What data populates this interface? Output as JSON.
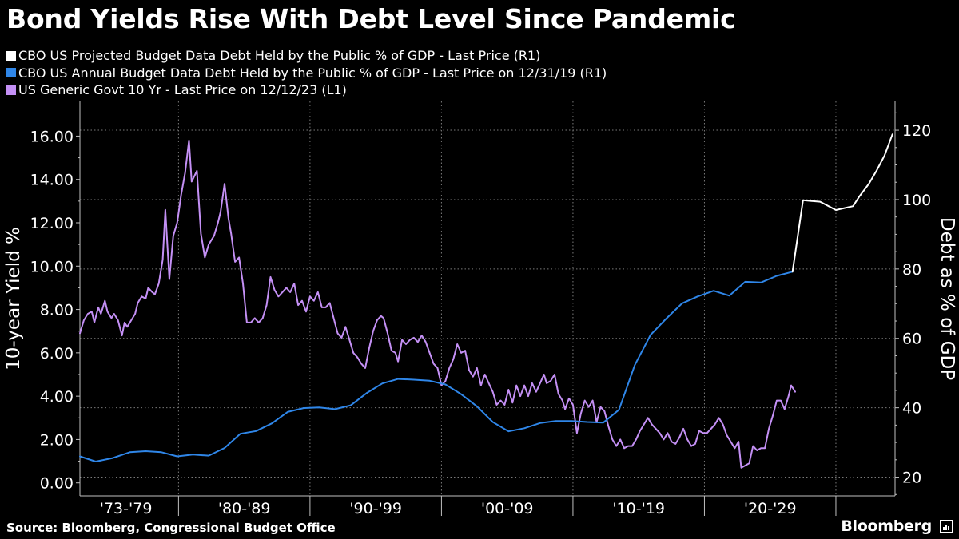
{
  "title": "Bond Yields Rise With Debt Level Since Pandemic",
  "legend": [
    {
      "label": "CBO US Projected Budget Data Debt Held by the Public % of GDP - Last Price (R1)",
      "color": "#ffffff"
    },
    {
      "label": "CBO US Annual Budget Data Debt Held by the Public % of GDP - Last Price on 12/31/19 (R1)",
      "color": "#2f86e8"
    },
    {
      "label": "US Generic Govt 10 Yr - Last Price on 12/12/23 (L1)",
      "color": "#c490f5"
    }
  ],
  "source": "Source: Bloomberg, Congressional Budget Office",
  "brand": "Bloomberg",
  "chart_data": {
    "type": "line",
    "x_range": [
      1972,
      2034
    ],
    "x_ticks": [
      1979.5,
      1989.5,
      1999.5,
      2009.5,
      2019.5,
      2029.5
    ],
    "x_tick_labels": [
      "'73-'79",
      "'80-'89",
      "'90-'99",
      "'00-'09",
      "'10-'19",
      "'20-'29"
    ],
    "x_tick_label_positions": [
      1975.5,
      1984.5,
      1994.5,
      2004.5,
      2014.5,
      2024.5
    ],
    "left_axis": {
      "label": "10-year Yield %",
      "range": [
        -0.6,
        17.6
      ],
      "ticks": [
        0,
        2,
        4,
        6,
        8,
        10,
        12,
        14,
        16
      ],
      "tick_labels": [
        "0.00",
        "2.00",
        "4.00",
        "6.00",
        "8.00",
        "10.00",
        "12.00",
        "14.00",
        "16.00"
      ]
    },
    "right_axis": {
      "label": "Debt as % of GDP",
      "range": [
        14.6,
        128.3
      ],
      "ticks": [
        20,
        40,
        60,
        80,
        100,
        120
      ],
      "tick_labels": [
        "20",
        "40",
        "60",
        "80",
        "100",
        "120"
      ]
    },
    "grid": true,
    "series": [
      {
        "name": "US Generic Govt 10 Yr - Last Price on 12/12/23 (L1)",
        "axis": "left",
        "color": "#c490f5",
        "points": [
          [
            1972.0,
            6.9
          ],
          [
            1972.3,
            7.5
          ],
          [
            1972.6,
            7.8
          ],
          [
            1972.9,
            7.9
          ],
          [
            1973.1,
            7.4
          ],
          [
            1973.4,
            8.1
          ],
          [
            1973.6,
            7.8
          ],
          [
            1973.9,
            8.4
          ],
          [
            1974.1,
            7.9
          ],
          [
            1974.4,
            7.6
          ],
          [
            1974.6,
            7.8
          ],
          [
            1974.9,
            7.5
          ],
          [
            1975.2,
            6.8
          ],
          [
            1975.4,
            7.4
          ],
          [
            1975.6,
            7.2
          ],
          [
            1975.9,
            7.5
          ],
          [
            1976.2,
            7.8
          ],
          [
            1976.4,
            8.3
          ],
          [
            1976.7,
            8.6
          ],
          [
            1977.0,
            8.5
          ],
          [
            1977.2,
            9.0
          ],
          [
            1977.5,
            8.8
          ],
          [
            1977.7,
            8.7
          ],
          [
            1978.0,
            9.2
          ],
          [
            1978.3,
            10.3
          ],
          [
            1978.5,
            12.6
          ],
          [
            1978.8,
            9.4
          ],
          [
            1979.1,
            11.4
          ],
          [
            1979.4,
            12.0
          ],
          [
            1979.7,
            13.3
          ],
          [
            1980.0,
            14.3
          ],
          [
            1980.3,
            15.8
          ],
          [
            1980.5,
            13.9
          ],
          [
            1980.9,
            14.4
          ],
          [
            1981.2,
            11.5
          ],
          [
            1981.5,
            10.4
          ],
          [
            1981.8,
            11.0
          ],
          [
            1982.2,
            11.4
          ],
          [
            1982.5,
            12.0
          ],
          [
            1982.7,
            12.5
          ],
          [
            1983.0,
            13.8
          ],
          [
            1983.3,
            12.2
          ],
          [
            1983.5,
            11.5
          ],
          [
            1983.8,
            10.2
          ],
          [
            1984.1,
            10.4
          ],
          [
            1984.4,
            9.2
          ],
          [
            1984.7,
            7.4
          ],
          [
            1985.0,
            7.4
          ],
          [
            1985.3,
            7.6
          ],
          [
            1985.6,
            7.4
          ],
          [
            1985.9,
            7.6
          ],
          [
            1986.2,
            8.2
          ],
          [
            1986.5,
            9.5
          ],
          [
            1986.8,
            8.9
          ],
          [
            1987.1,
            8.6
          ],
          [
            1987.4,
            8.8
          ],
          [
            1987.7,
            9.0
          ],
          [
            1988.0,
            8.8
          ],
          [
            1988.3,
            9.2
          ],
          [
            1988.6,
            8.2
          ],
          [
            1988.9,
            8.4
          ],
          [
            1989.2,
            7.9
          ],
          [
            1989.5,
            8.6
          ],
          [
            1989.8,
            8.4
          ],
          [
            1990.1,
            8.8
          ],
          [
            1990.4,
            8.1
          ],
          [
            1990.7,
            8.1
          ],
          [
            1991.0,
            8.3
          ],
          [
            1991.3,
            7.6
          ],
          [
            1991.6,
            6.9
          ],
          [
            1991.9,
            6.7
          ],
          [
            1992.2,
            7.2
          ],
          [
            1992.5,
            6.6
          ],
          [
            1992.8,
            6.0
          ],
          [
            1993.1,
            5.8
          ],
          [
            1993.4,
            5.5
          ],
          [
            1993.7,
            5.3
          ],
          [
            1994.0,
            6.2
          ],
          [
            1994.3,
            7.0
          ],
          [
            1994.6,
            7.5
          ],
          [
            1994.9,
            7.7
          ],
          [
            1995.1,
            7.6
          ],
          [
            1995.4,
            6.9
          ],
          [
            1995.7,
            6.1
          ],
          [
            1996.0,
            6.0
          ],
          [
            1996.2,
            5.6
          ],
          [
            1996.5,
            6.6
          ],
          [
            1996.8,
            6.4
          ],
          [
            1997.1,
            6.6
          ],
          [
            1997.4,
            6.7
          ],
          [
            1997.7,
            6.5
          ],
          [
            1998.0,
            6.8
          ],
          [
            1998.3,
            6.5
          ],
          [
            1998.6,
            6.0
          ],
          [
            1998.9,
            5.5
          ],
          [
            1999.2,
            5.3
          ],
          [
            1999.5,
            4.5
          ],
          [
            1999.8,
            4.7
          ],
          [
            2000.1,
            5.3
          ],
          [
            2000.4,
            5.7
          ],
          [
            2000.7,
            6.4
          ],
          [
            2001.0,
            6.0
          ],
          [
            2001.3,
            6.1
          ],
          [
            2001.6,
            5.2
          ],
          [
            2001.9,
            4.9
          ],
          [
            2002.2,
            5.3
          ],
          [
            2002.5,
            4.5
          ],
          [
            2002.8,
            5.0
          ],
          [
            2003.1,
            4.6
          ],
          [
            2003.4,
            4.2
          ],
          [
            2003.7,
            3.6
          ],
          [
            2004.0,
            3.8
          ],
          [
            2004.3,
            3.6
          ],
          [
            2004.6,
            4.3
          ],
          [
            2004.9,
            3.7
          ],
          [
            2005.2,
            4.5
          ],
          [
            2005.5,
            4.0
          ],
          [
            2005.8,
            4.5
          ],
          [
            2006.1,
            4.0
          ],
          [
            2006.4,
            4.6
          ],
          [
            2006.7,
            4.2
          ],
          [
            2007.0,
            4.6
          ],
          [
            2007.3,
            5.0
          ],
          [
            2007.5,
            4.6
          ],
          [
            2007.8,
            4.7
          ],
          [
            2008.1,
            5.0
          ],
          [
            2008.4,
            4.1
          ],
          [
            2008.7,
            3.8
          ],
          [
            2008.9,
            3.4
          ],
          [
            2009.2,
            3.9
          ],
          [
            2009.5,
            3.6
          ],
          [
            2009.8,
            2.3
          ],
          [
            2010.1,
            3.2
          ],
          [
            2010.4,
            3.8
          ],
          [
            2010.7,
            3.5
          ],
          [
            2011.0,
            3.8
          ],
          [
            2011.3,
            2.8
          ],
          [
            2011.6,
            3.5
          ],
          [
            2011.9,
            3.3
          ],
          [
            2012.2,
            2.6
          ],
          [
            2012.5,
            2.0
          ],
          [
            2012.8,
            1.7
          ],
          [
            2013.1,
            2.0
          ],
          [
            2013.4,
            1.6
          ],
          [
            2013.7,
            1.7
          ],
          [
            2014.0,
            1.7
          ],
          [
            2014.3,
            2.0
          ],
          [
            2014.6,
            2.4
          ],
          [
            2014.9,
            2.7
          ],
          [
            2015.2,
            3.0
          ],
          [
            2015.5,
            2.7
          ],
          [
            2015.8,
            2.5
          ],
          [
            2016.1,
            2.3
          ],
          [
            2016.4,
            2.0
          ],
          [
            2016.7,
            2.3
          ],
          [
            2017.0,
            1.9
          ],
          [
            2017.3,
            1.8
          ],
          [
            2017.6,
            2.1
          ],
          [
            2017.9,
            2.5
          ],
          [
            2018.2,
            2.0
          ],
          [
            2018.5,
            1.7
          ],
          [
            2018.8,
            1.8
          ],
          [
            2019.1,
            2.4
          ],
          [
            2019.4,
            2.3
          ],
          [
            2019.7,
            2.3
          ],
          [
            2020.0,
            2.5
          ],
          [
            2020.3,
            2.7
          ],
          [
            2020.6,
            3.0
          ],
          [
            2020.9,
            2.7
          ],
          [
            2021.2,
            2.2
          ],
          [
            2021.5,
            1.9
          ],
          [
            2021.8,
            1.6
          ],
          [
            2022.1,
            1.9
          ],
          [
            2022.3,
            0.7
          ],
          [
            2022.6,
            0.8
          ],
          [
            2022.9,
            0.9
          ],
          [
            2023.2,
            1.7
          ],
          [
            2023.5,
            1.5
          ],
          [
            2023.8,
            1.6
          ],
          [
            2024.1,
            1.6
          ],
          [
            2024.4,
            2.5
          ],
          [
            2024.7,
            3.1
          ],
          [
            2025.0,
            3.8
          ],
          [
            2025.3,
            3.8
          ],
          [
            2025.6,
            3.4
          ],
          [
            2025.9,
            4.0
          ],
          [
            2026.1,
            4.5
          ],
          [
            2026.4,
            4.2
          ]
        ]
      },
      {
        "name": "CBO US Annual Budget Data Debt Held by the Public % of GDP - Last Price on 12/31/19 (R1)",
        "axis": "right",
        "color": "#2f86e8",
        "points": [
          [
            1972.0,
            26.0
          ],
          [
            1973.2,
            24.5
          ],
          [
            1974.5,
            25.5
          ],
          [
            1975.8,
            27.2
          ],
          [
            1977.0,
            27.5
          ],
          [
            1978.2,
            27.2
          ],
          [
            1979.4,
            26.0
          ],
          [
            1980.6,
            26.5
          ],
          [
            1981.8,
            26.2
          ],
          [
            1983.0,
            28.4
          ],
          [
            1984.2,
            32.5
          ],
          [
            1985.4,
            33.3
          ],
          [
            1986.6,
            35.5
          ],
          [
            1987.8,
            38.8
          ],
          [
            1989.0,
            39.9
          ],
          [
            1990.2,
            40.1
          ],
          [
            1991.4,
            39.6
          ],
          [
            1992.6,
            40.7
          ],
          [
            1993.8,
            44.2
          ],
          [
            1995.0,
            47.0
          ],
          [
            1996.2,
            48.3
          ],
          [
            1997.4,
            48.1
          ],
          [
            1998.6,
            47.8
          ],
          [
            1999.8,
            46.7
          ],
          [
            2001.0,
            43.9
          ],
          [
            2002.2,
            40.4
          ],
          [
            2003.4,
            35.9
          ],
          [
            2004.6,
            33.2
          ],
          [
            2005.8,
            34.1
          ],
          [
            2007.0,
            35.6
          ],
          [
            2008.2,
            36.2
          ],
          [
            2009.4,
            36.2
          ],
          [
            2010.6,
            35.9
          ],
          [
            2011.8,
            35.7
          ],
          [
            2013.0,
            39.4
          ],
          [
            2014.2,
            52.3
          ],
          [
            2015.4,
            61.0
          ],
          [
            2016.6,
            65.7
          ],
          [
            2017.8,
            70.1
          ],
          [
            2019.0,
            72.1
          ],
          [
            2020.2,
            73.7
          ],
          [
            2021.4,
            72.3
          ],
          [
            2022.6,
            76.3
          ],
          [
            2023.8,
            76.1
          ],
          [
            2025.0,
            78.0
          ],
          [
            2026.2,
            79.2
          ]
        ]
      },
      {
        "name": "CBO US Projected Budget Data Debt Held by the Public % of GDP - Last Price (R1)",
        "axis": "right",
        "color": "#ffffff",
        "points": [
          [
            2026.2,
            79.2
          ],
          [
            2027.0,
            99.8
          ],
          [
            2028.3,
            99.4
          ],
          [
            2029.5,
            97.0
          ],
          [
            2030.8,
            98.1
          ],
          [
            2031.3,
            101.0
          ],
          [
            2032.0,
            104.5
          ],
          [
            2032.6,
            108.4
          ],
          [
            2033.2,
            112.7
          ],
          [
            2033.8,
            118.8
          ]
        ]
      }
    ]
  }
}
